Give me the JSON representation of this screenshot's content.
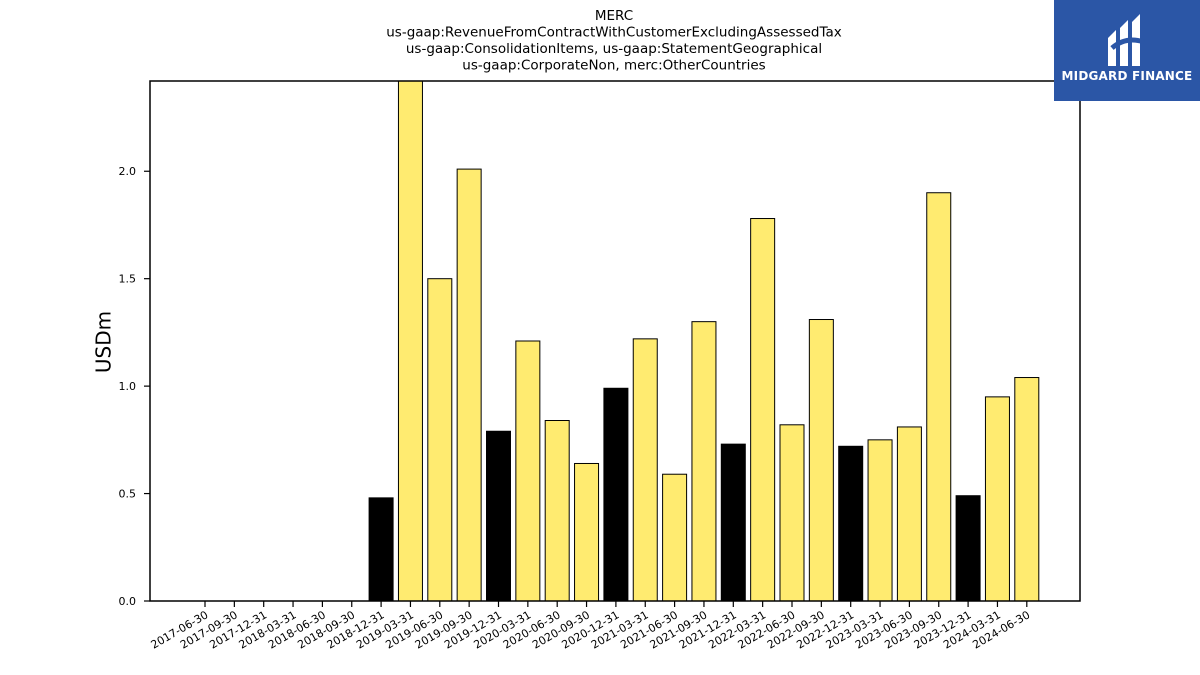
{
  "chart_data": {
    "type": "bar",
    "title_lines": [
      "MERC",
      "us-gaap:RevenueFromContractWithCustomerExcludingAssessedTax",
      "us-gaap:ConsolidationItems, us-gaap:StatementGeographical",
      "us-gaap:CorporateNon, merc:OtherCountries"
    ],
    "ylabel": "USDm",
    "ylim": [
      0,
      2.42
    ],
    "yticks": [
      "0.0",
      "0.5",
      "1.0",
      "1.5",
      "2.0"
    ],
    "categories": [
      "2017-06-30",
      "2017-09-30",
      "2017-12-31",
      "2018-03-31",
      "2018-06-30",
      "2018-09-30",
      "2018-12-31",
      "2019-03-31",
      "2019-06-30",
      "2019-09-30",
      "2019-12-31",
      "2020-03-31",
      "2020-06-30",
      "2020-09-30",
      "2020-12-31",
      "2021-03-31",
      "2021-06-30",
      "2021-09-30",
      "2021-12-31",
      "2022-03-31",
      "2022-06-30",
      "2022-09-30",
      "2022-12-31",
      "2023-03-31",
      "2023-06-30",
      "2023-09-30",
      "2023-12-31",
      "2024-03-31",
      "2024-06-30"
    ],
    "values": [
      null,
      null,
      null,
      null,
      null,
      null,
      0.48,
      2.42,
      1.5,
      2.01,
      0.79,
      1.21,
      0.84,
      0.64,
      0.99,
      1.22,
      0.59,
      1.3,
      0.73,
      1.78,
      0.82,
      1.31,
      0.72,
      0.75,
      0.81,
      1.9,
      0.49,
      0.95,
      1.04
    ],
    "bar_colors": [
      null,
      null,
      null,
      null,
      null,
      null,
      "#000000",
      "#ffeb70",
      "#ffeb70",
      "#ffeb70",
      "#000000",
      "#ffeb70",
      "#ffeb70",
      "#ffeb70",
      "#000000",
      "#ffeb70",
      "#ffeb70",
      "#ffeb70",
      "#000000",
      "#ffeb70",
      "#ffeb70",
      "#ffeb70",
      "#000000",
      "#ffeb70",
      "#ffeb70",
      "#ffeb70",
      "#000000",
      "#ffeb70",
      "#ffeb70"
    ],
    "grid": false,
    "legend": "none"
  },
  "logo": {
    "text": "MIDGARD FINANCE",
    "background": "#2b56a6"
  }
}
